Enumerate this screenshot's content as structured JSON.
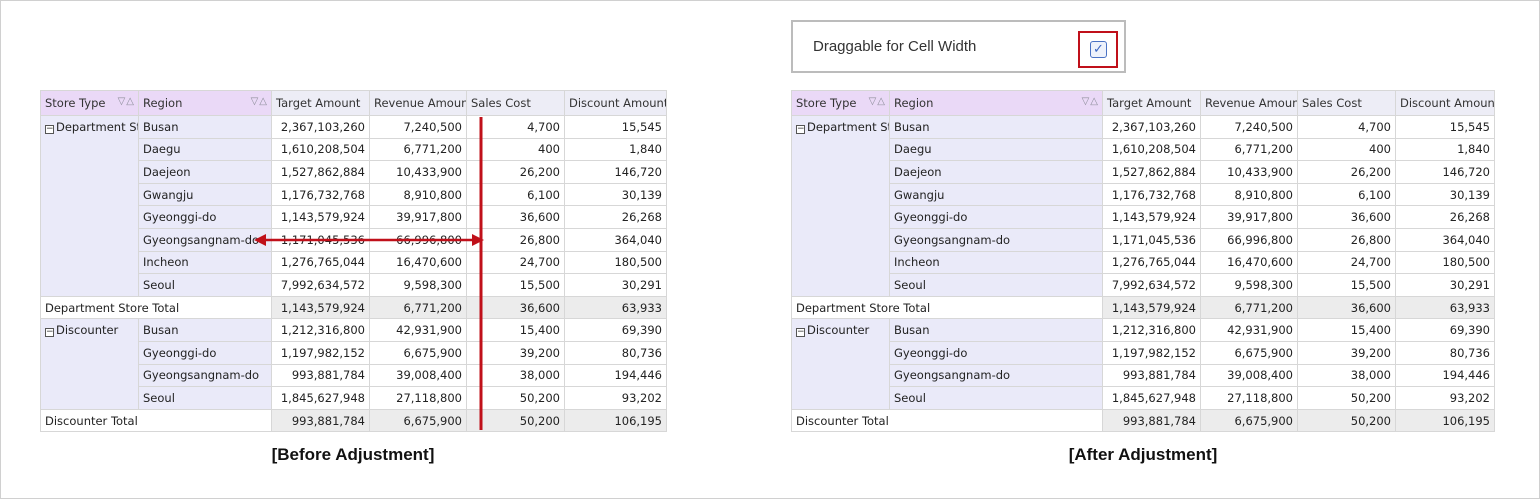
{
  "columns": {
    "store_type": "Store Type",
    "region": "Region",
    "target": "Target Amount",
    "revenue": "Revenue Amount",
    "cost": "Sales Cost",
    "discount": "Discount Amount"
  },
  "header_icons": [
    "filter-icon",
    "sort-ascending-icon"
  ],
  "before": {
    "group1": {
      "name": "Department St",
      "rows": [
        {
          "region": "Busan",
          "target": "2,367,103,260",
          "revenue": "7,240,500",
          "cost": "4,700",
          "discount": "15,545"
        },
        {
          "region": "Daegu",
          "target": "1,610,208,504",
          "revenue": "6,771,200",
          "cost": "400",
          "discount": "1,840"
        },
        {
          "region": "Daejeon",
          "target": "1,527,862,884",
          "revenue": "10,433,900",
          "cost": "26,200",
          "discount": "146,720"
        },
        {
          "region": "Gwangju",
          "target": "1,176,732,768",
          "revenue": "8,910,800",
          "cost": "6,100",
          "discount": "30,139"
        },
        {
          "region": "Gyeonggi-do",
          "target": "1,143,579,924",
          "revenue": "39,917,800",
          "cost": "36,600",
          "discount": "26,268"
        },
        {
          "region": "Gyeongsangnam-do",
          "target": "1,171,045,536",
          "revenue": "66,996,800",
          "cost": "26,800",
          "discount": "364,040"
        },
        {
          "region": "Incheon",
          "target": "1,276,765,044",
          "revenue": "16,470,600",
          "cost": "24,700",
          "discount": "180,500"
        },
        {
          "region": "Seoul",
          "target": "7,992,634,572",
          "revenue": "9,598,300",
          "cost": "15,500",
          "discount": "30,291"
        }
      ],
      "total": {
        "label": "Department Store Total",
        "target": "1,143,579,924",
        "revenue": "6,771,200",
        "cost": "36,600",
        "discount": "63,933"
      }
    },
    "group2": {
      "name": "Discounter",
      "rows": [
        {
          "region": "Busan",
          "target": "1,212,316,800",
          "revenue": "42,931,900",
          "cost": "15,400",
          "discount": "69,390"
        },
        {
          "region": "Gyeonggi-do",
          "target": "1,197,982,152",
          "revenue": "6,675,900",
          "cost": "39,200",
          "discount": "80,736"
        },
        {
          "region": "Gyeongsangnam-do",
          "target": "993,881,784",
          "revenue": "39,008,400",
          "cost": "38,000",
          "discount": "194,446"
        },
        {
          "region": "Seoul",
          "target": "1,845,627,948",
          "revenue": "27,118,800",
          "cost": "50,200",
          "discount": "93,202"
        }
      ],
      "total": {
        "label": "Discounter Total",
        "target": "993,881,784",
        "revenue": "6,675,900",
        "cost": "50,200",
        "discount": "106,195"
      }
    }
  },
  "after": {
    "group1": {
      "name": "Department St",
      "rows": [
        {
          "region": "Busan",
          "target": "2,367,103,260",
          "revenue": "7,240,500",
          "cost": "4,700",
          "discount": "15,545"
        },
        {
          "region": "Daegu",
          "target": "1,610,208,504",
          "revenue": "6,771,200",
          "cost": "400",
          "discount": "1,840"
        },
        {
          "region": "Daejeon",
          "target": "1,527,862,884",
          "revenue": "10,433,900",
          "cost": "26,200",
          "discount": "146,720"
        },
        {
          "region": "Gwangju",
          "target": "1,176,732,768",
          "revenue": "8,910,800",
          "cost": "6,100",
          "discount": "30,139"
        },
        {
          "region": "Gyeonggi-do",
          "target": "1,143,579,924",
          "revenue": "39,917,800",
          "cost": "36,600",
          "discount": "26,268"
        },
        {
          "region": "Gyeongsangnam-do",
          "target": "1,171,045,536",
          "revenue": "66,996,800",
          "cost": "26,800",
          "discount": "364,040"
        },
        {
          "region": "Incheon",
          "target": "1,276,765,044",
          "revenue": "16,470,600",
          "cost": "24,700",
          "discount": "180,500"
        },
        {
          "region": "Seoul",
          "target": "7,992,634,572",
          "revenue": "9,598,300",
          "cost": "15,500",
          "discount": "30,291"
        }
      ],
      "total": {
        "label": "Department Store Total",
        "target": "1,143,579,924",
        "revenue": "6,771,200",
        "cost": "36,600",
        "discount": "63,933"
      }
    },
    "group2": {
      "name": "Discounter",
      "rows": [
        {
          "region": "Busan",
          "target": "1,212,316,800",
          "revenue": "42,931,900",
          "cost": "15,400",
          "discount": "69,390"
        },
        {
          "region": "Gyeonggi-do",
          "target": "1,197,982,152",
          "revenue": "6,675,900",
          "cost": "39,200",
          "discount": "80,736"
        },
        {
          "region": "Gyeongsangnam-do",
          "target": "993,881,784",
          "revenue": "39,008,400",
          "cost": "38,000",
          "discount": "194,446"
        },
        {
          "region": "Seoul",
          "target": "1,845,627,948",
          "revenue": "27,118,800",
          "cost": "50,200",
          "discount": "93,202"
        }
      ],
      "total": {
        "label": "Discounter Total",
        "target": "993,881,784",
        "revenue": "6,675,900",
        "cost": "50,200",
        "discount": "106,195"
      }
    }
  },
  "option": {
    "label": "Draggable for Cell Width",
    "checked": true
  },
  "captions": {
    "before": "[Before Adjustment]",
    "after": "[After Adjustment]"
  },
  "colors": {
    "annotation_red": "#c0101a",
    "dim_header": "#ead9f7",
    "dim_cell": "#eaeaf9"
  }
}
